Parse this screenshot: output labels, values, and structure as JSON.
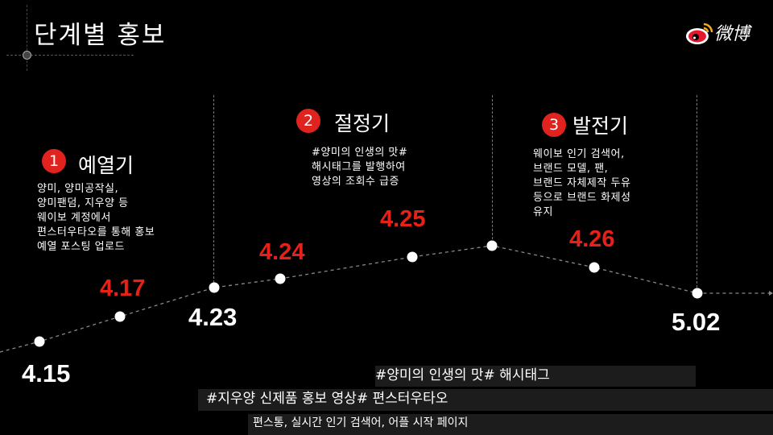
{
  "slide": {
    "title": "단계별 홍보",
    "logo_icon": "weibo-logo-icon",
    "logo_text": "微博"
  },
  "stages": [
    {
      "number": "1",
      "name": "예열기",
      "description": "양미, 양미공작실,\n양미팬덤, 지우양 등\n웨이보 계정에서\n편스터우타오를 통해 홍보\n예열 포스팅 업로드"
    },
    {
      "number": "2",
      "name": "절정기",
      "description": "#양미의 인생의 맛#\n해시태그를 발행하여\n영상의 조회수 급증"
    },
    {
      "number": "3",
      "name": "발전기",
      "description": "웨이보 인기 검색어,\n브랜드 모델, 팬,\n브랜드 자체제작 두유\n등으로 브랜드 화제성\n유지"
    }
  ],
  "timeline": {
    "dates": [
      "4.15",
      "4.17",
      "4.23",
      "4.24",
      "4.25",
      "4.26",
      "5.02"
    ],
    "accent_color": "#e62117",
    "badge_color": "#e0231e"
  },
  "bars": [
    "#양미의 인생의 맛# 해시태그",
    "#지우양 신제품 홍보 영상# 편스터우타오",
    "편스통, 실시간 인기 검색어, 어플 시작 페이지"
  ]
}
